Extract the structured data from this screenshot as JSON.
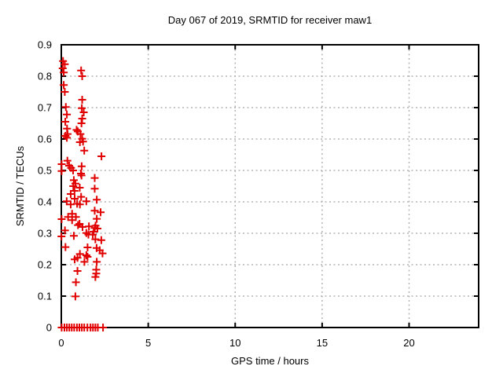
{
  "chart_data": {
    "type": "scatter",
    "title": "Day 067 of 2019, SRMTID for receiver maw1",
    "xlabel": "GPS time / hours",
    "ylabel": "SRMTID / TECUs",
    "xlim": [
      0,
      24
    ],
    "ylim": [
      0,
      0.9
    ],
    "xticks": [
      0,
      5,
      10,
      15,
      20
    ],
    "yticks": [
      0,
      0.1,
      0.2,
      0.3,
      0.4,
      0.5,
      0.6,
      0.7,
      0.8,
      0.9
    ],
    "grid": true,
    "legend": "none",
    "marker": "plus",
    "marker_color": "#e00000",
    "grid_color": "#b4b4b4",
    "border_color": "#000000",
    "series": [
      {
        "name": "SRMTID",
        "points": [
          [
            0.1,
            0.848
          ],
          [
            0.2,
            0.838
          ],
          [
            0.08,
            0.825
          ],
          [
            0.14,
            0.812
          ],
          [
            1.14,
            0.818
          ],
          [
            1.2,
            0.8
          ],
          [
            0.14,
            0.772
          ],
          [
            0.2,
            0.75
          ],
          [
            1.2,
            0.725
          ],
          [
            0.26,
            0.702
          ],
          [
            1.18,
            0.698
          ],
          [
            1.29,
            0.685
          ],
          [
            0.32,
            0.678
          ],
          [
            1.2,
            0.665
          ],
          [
            0.23,
            0.655
          ],
          [
            1.16,
            0.65
          ],
          [
            0.33,
            0.633
          ],
          [
            0.88,
            0.629
          ],
          [
            0.95,
            0.624
          ],
          [
            1.1,
            0.616
          ],
          [
            0.36,
            0.616
          ],
          [
            0.24,
            0.61
          ],
          [
            0.32,
            0.604
          ],
          [
            1.2,
            0.601
          ],
          [
            1.07,
            0.59
          ],
          [
            1.25,
            0.592
          ],
          [
            1.32,
            0.563
          ],
          [
            2.31,
            0.545
          ],
          [
            0.35,
            0.531
          ],
          [
            0.02,
            0.52
          ],
          [
            0.45,
            0.515
          ],
          [
            1.17,
            0.513
          ],
          [
            0.56,
            0.508
          ],
          [
            0.68,
            0.5
          ],
          [
            0.02,
            0.498
          ],
          [
            1.13,
            0.49
          ],
          [
            1.16,
            0.484
          ],
          [
            1.92,
            0.476
          ],
          [
            0.72,
            0.469
          ],
          [
            0.81,
            0.458
          ],
          [
            0.69,
            0.45
          ],
          [
            1.06,
            0.445
          ],
          [
            1.92,
            0.442
          ],
          [
            0.76,
            0.435
          ],
          [
            0.54,
            0.425
          ],
          [
            1.14,
            0.416
          ],
          [
            0.77,
            0.41
          ],
          [
            0.31,
            0.402
          ],
          [
            1.44,
            0.402
          ],
          [
            2.04,
            0.407
          ],
          [
            0.54,
            0.392
          ],
          [
            0.91,
            0.394
          ],
          [
            1.07,
            0.392
          ],
          [
            1.92,
            0.372
          ],
          [
            2.26,
            0.367
          ],
          [
            0.62,
            0.362
          ],
          [
            0.39,
            0.352
          ],
          [
            0.84,
            0.352
          ],
          [
            0.02,
            0.345
          ],
          [
            2.04,
            0.346
          ],
          [
            0.62,
            0.342
          ],
          [
            1.05,
            0.33
          ],
          [
            1.59,
            0.322
          ],
          [
            1.97,
            0.324
          ],
          [
            0.96,
            0.326
          ],
          [
            1.22,
            0.32
          ],
          [
            1.92,
            0.317
          ],
          [
            2.08,
            0.315
          ],
          [
            0.21,
            0.309
          ],
          [
            1.86,
            0.305
          ],
          [
            1.44,
            0.301
          ],
          [
            0.01,
            0.29
          ],
          [
            0.72,
            0.292
          ],
          [
            1.56,
            0.296
          ],
          [
            1.81,
            0.296
          ],
          [
            1.96,
            0.281
          ],
          [
            2.3,
            0.278
          ],
          [
            0.24,
            0.256
          ],
          [
            1.51,
            0.255
          ],
          [
            2.03,
            0.253
          ],
          [
            2.21,
            0.246
          ],
          [
            0.93,
            0.222
          ],
          [
            1.51,
            0.225
          ],
          [
            2.04,
            0.209
          ],
          [
            2.37,
            0.236
          ],
          [
            1.07,
            0.234
          ],
          [
            1.44,
            0.23
          ],
          [
            0.77,
            0.217
          ],
          [
            1.33,
            0.209
          ],
          [
            0.93,
            0.18
          ],
          [
            2.01,
            0.184
          ],
          [
            2.01,
            0.172
          ],
          [
            1.96,
            0.161
          ],
          [
            0.84,
            0.144
          ],
          [
            0.81,
            0.099
          ],
          [
            0.02,
            0.0
          ],
          [
            0.18,
            0.0
          ],
          [
            0.32,
            0.0
          ],
          [
            0.46,
            0.0
          ],
          [
            0.6,
            0.0
          ],
          [
            0.74,
            0.0
          ],
          [
            0.9,
            0.0
          ],
          [
            1.04,
            0.0
          ],
          [
            1.18,
            0.0
          ],
          [
            1.32,
            0.0
          ],
          [
            1.5,
            0.0
          ],
          [
            1.68,
            0.0
          ],
          [
            1.82,
            0.0
          ],
          [
            1.96,
            0.0
          ],
          [
            2.1,
            0.0
          ],
          [
            2.4,
            0.0
          ]
        ]
      }
    ]
  }
}
